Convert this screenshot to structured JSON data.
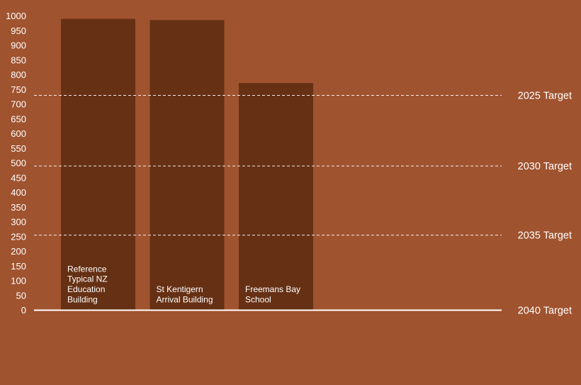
{
  "colors": {
    "background": "#a0532f",
    "bar": "#663014",
    "text": "#ffffff",
    "line": "#ffffff"
  },
  "chart_data": {
    "type": "bar",
    "categories": [
      [
        "Reference",
        "Typical NZ",
        "Education",
        "Building"
      ],
      [
        "St Kentigern",
        "Arrival Building"
      ],
      [
        "Freemans Bay",
        "School"
      ]
    ],
    "values": [
      990,
      986,
      772
    ],
    "ylim": [
      0,
      1000
    ],
    "yticks": [
      0,
      50,
      100,
      150,
      200,
      250,
      300,
      350,
      400,
      450,
      500,
      550,
      600,
      650,
      700,
      750,
      800,
      850,
      900,
      950,
      1000
    ],
    "grid": false,
    "reference_lines": [
      {
        "label": "2025 Target",
        "value": 730,
        "style": "dashed"
      },
      {
        "label": "2030 Target",
        "value": 490,
        "style": "dashed"
      },
      {
        "label": "2035 Target",
        "value": 255,
        "style": "dashed"
      },
      {
        "label": "2040 Target",
        "value": 0,
        "style": "solid"
      }
    ]
  }
}
